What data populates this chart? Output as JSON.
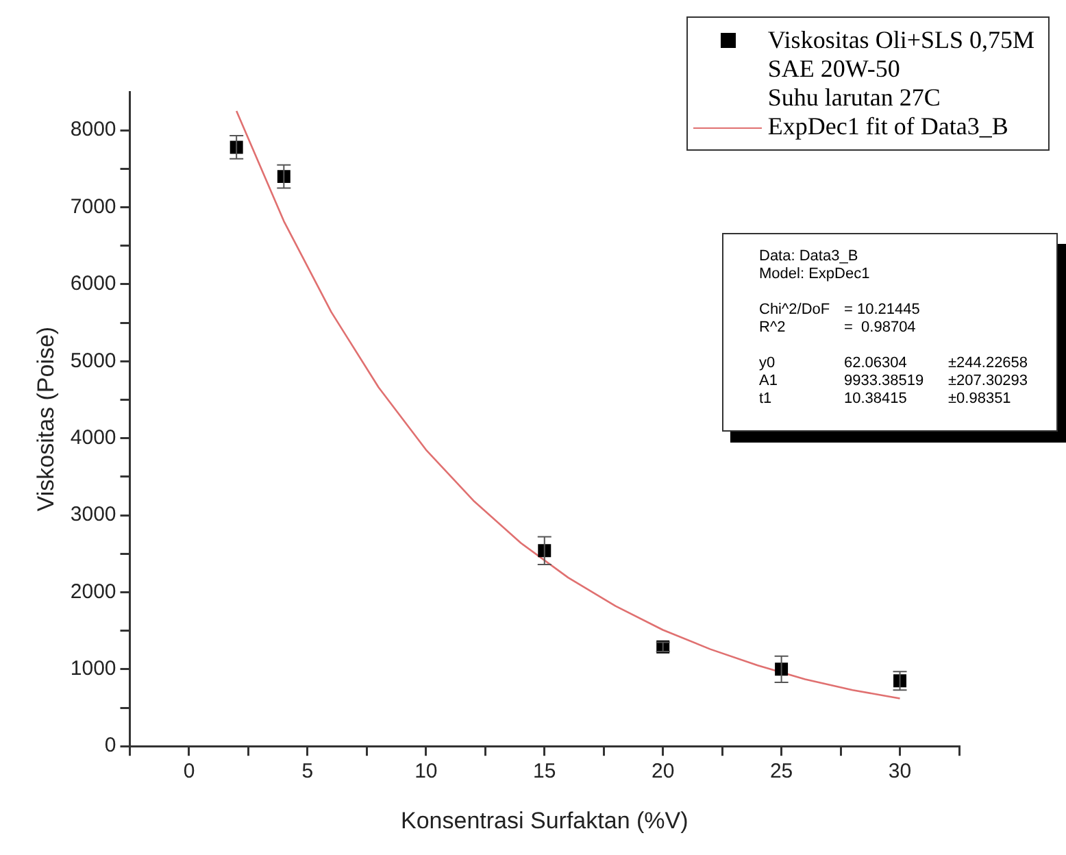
{
  "chart_data": {
    "type": "scatter",
    "xlabel": "Konsentrasi Surfaktan (%V)",
    "ylabel": "Viskositas (Poise)",
    "xlim": [
      -2.5,
      32.5
    ],
    "ylim": [
      0,
      8500
    ],
    "xticks": [
      {
        "value": -2.5,
        "label": null
      },
      0,
      {
        "value": 2.5,
        "label": null
      },
      5,
      {
        "value": 7.5,
        "label": null
      },
      10,
      {
        "value": 12.5,
        "label": null
      },
      15,
      {
        "value": 17.5,
        "label": null
      },
      20,
      {
        "value": 22.5,
        "label": null
      },
      25,
      {
        "value": 27.5,
        "label": null
      },
      30,
      {
        "value": 32.5,
        "label": null
      }
    ],
    "yticks": [
      0,
      {
        "value": 500,
        "label": null
      },
      1000,
      {
        "value": 1500,
        "label": null
      },
      2000,
      {
        "value": 2500,
        "label": null
      },
      3000,
      {
        "value": 3500,
        "label": null
      },
      4000,
      {
        "value": 4500,
        "label": null
      },
      5000,
      {
        "value": 5500,
        "label": null
      },
      6000,
      {
        "value": 6500,
        "label": null
      },
      7000,
      {
        "value": 7500,
        "label": null
      },
      8000
    ],
    "grid": false,
    "legend": "top right",
    "marker": "square",
    "series": [
      {
        "name": "Viskositas Oli+SLS 0,75M\nSAE 20W-50\nSuhu larutan 27C",
        "color": "#000000",
        "x": [
          2,
          4,
          15,
          20,
          25,
          30
        ],
        "values": [
          7780,
          7400,
          2540,
          1290,
          1000,
          850
        ],
        "errors": [
          150,
          150,
          180,
          60,
          170,
          120
        ]
      },
      {
        "type": "line",
        "name": "ExpDec1 fit of Data3_B",
        "color": "#e07070",
        "marker": "none",
        "line_style": "solid",
        "x": [
          2,
          4,
          6,
          8,
          10,
          12,
          14,
          16,
          18,
          20,
          22,
          24,
          26,
          28,
          30
        ],
        "values": [
          8250,
          6820,
          5640,
          4660,
          3850,
          3190,
          2640,
          2190,
          1820,
          1510,
          1260,
          1050,
          870,
          730,
          620
        ]
      }
    ],
    "annotations": [
      "Data: Data3_B",
      "Model: ExpDec1",
      "Chi^2/DoF\t= 10.21445",
      "R^2\t=  0.98704",
      "y0\t62.06304\t±244.22658",
      "A1\t9933.38519\t±207.30293",
      "t1\t10.38415\t±0.98351"
    ]
  }
}
